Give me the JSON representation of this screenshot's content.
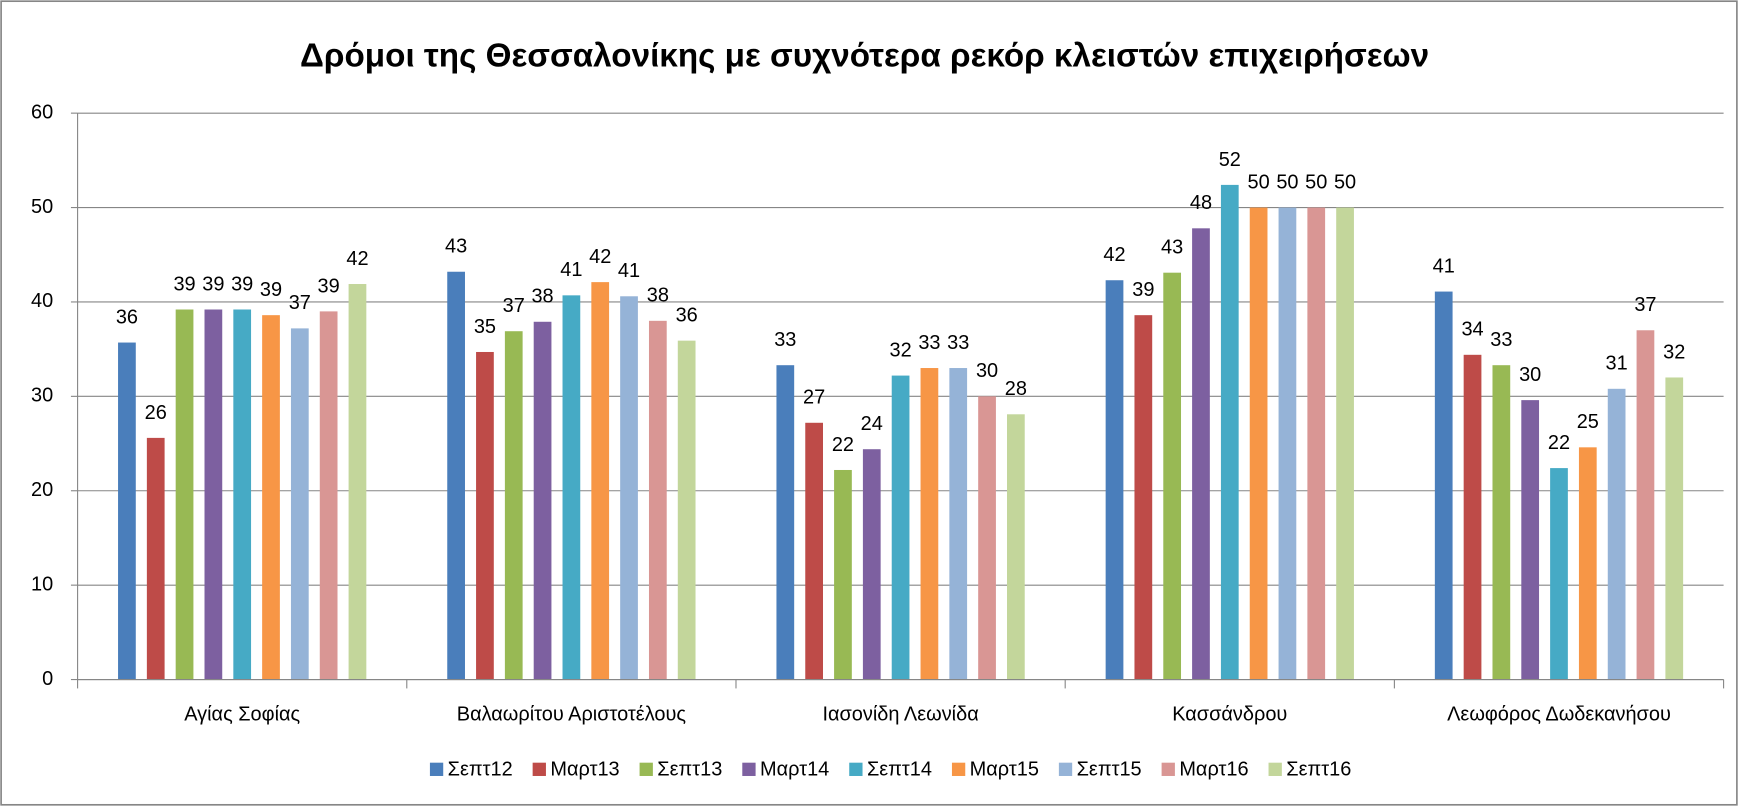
{
  "chart_data": {
    "type": "bar",
    "title": "Δρόμοι της Θεσσαλονίκης με συχνότερα ρεκόρ κλειστών επιχειρήσεων",
    "categories": [
      "Αγίας Σοφίας",
      "Βαλαωρίτου Αριστοτέλους",
      "Ιασονίδη Λεωνίδα",
      "Κασσάνδρου",
      "Λεωφόρος Δωδεκανήσου"
    ],
    "series": [
      {
        "name": "Σεπτ12",
        "color": "#4a7ebb",
        "values": [
          35.7,
          43.2,
          33.3,
          42.3,
          41.1
        ],
        "value_labels": [
          "36",
          "43",
          "33",
          "42",
          "41"
        ]
      },
      {
        "name": "Μαρτ13",
        "color": "#be4b48",
        "values": [
          25.6,
          34.7,
          27.2,
          38.6,
          34.4
        ],
        "value_labels": [
          "26",
          "35",
          "27",
          "39",
          "34"
        ]
      },
      {
        "name": "Σεπτ13",
        "color": "#98b954",
        "values": [
          39.2,
          36.9,
          22.2,
          43.1,
          33.3
        ],
        "value_labels": [
          "39",
          "37",
          "22",
          "43",
          "33"
        ]
      },
      {
        "name": "Μαρτ14",
        "color": "#7d60a0",
        "values": [
          39.2,
          37.9,
          24.4,
          47.8,
          29.6
        ],
        "value_labels": [
          "39",
          "38",
          "24",
          "48",
          "30"
        ]
      },
      {
        "name": "Σεπτ14",
        "color": "#46aac5",
        "values": [
          39.2,
          40.7,
          32.2,
          52.4,
          22.4
        ],
        "value_labels": [
          "39",
          "41",
          "32",
          "52",
          "22"
        ]
      },
      {
        "name": "Μαρτ15",
        "color": "#f79646",
        "values": [
          38.6,
          42.1,
          33.0,
          50.0,
          24.6
        ],
        "value_labels": [
          "39",
          "42",
          "33",
          "50",
          "25"
        ]
      },
      {
        "name": "Σεπτ15",
        "color": "#95b3d7",
        "values": [
          37.2,
          40.6,
          33.0,
          50.0,
          30.8
        ],
        "value_labels": [
          "37",
          "41",
          "33",
          "50",
          "31"
        ]
      },
      {
        "name": "Μαρτ16",
        "color": "#d99694",
        "values": [
          39.0,
          38.0,
          30.0,
          50.0,
          37.0
        ],
        "value_labels": [
          "39",
          "38",
          "30",
          "50",
          "37"
        ]
      },
      {
        "name": "Σεπτ16",
        "color": "#c3d69b",
        "values": [
          41.9,
          35.9,
          28.1,
          50.0,
          32.0
        ],
        "value_labels": [
          "42",
          "36",
          "28",
          "50",
          "32"
        ]
      }
    ],
    "ylim": [
      0,
      60
    ],
    "yticks": [
      0,
      10,
      20,
      30,
      40,
      50,
      60
    ],
    "grid": true,
    "legend": "bottom"
  }
}
